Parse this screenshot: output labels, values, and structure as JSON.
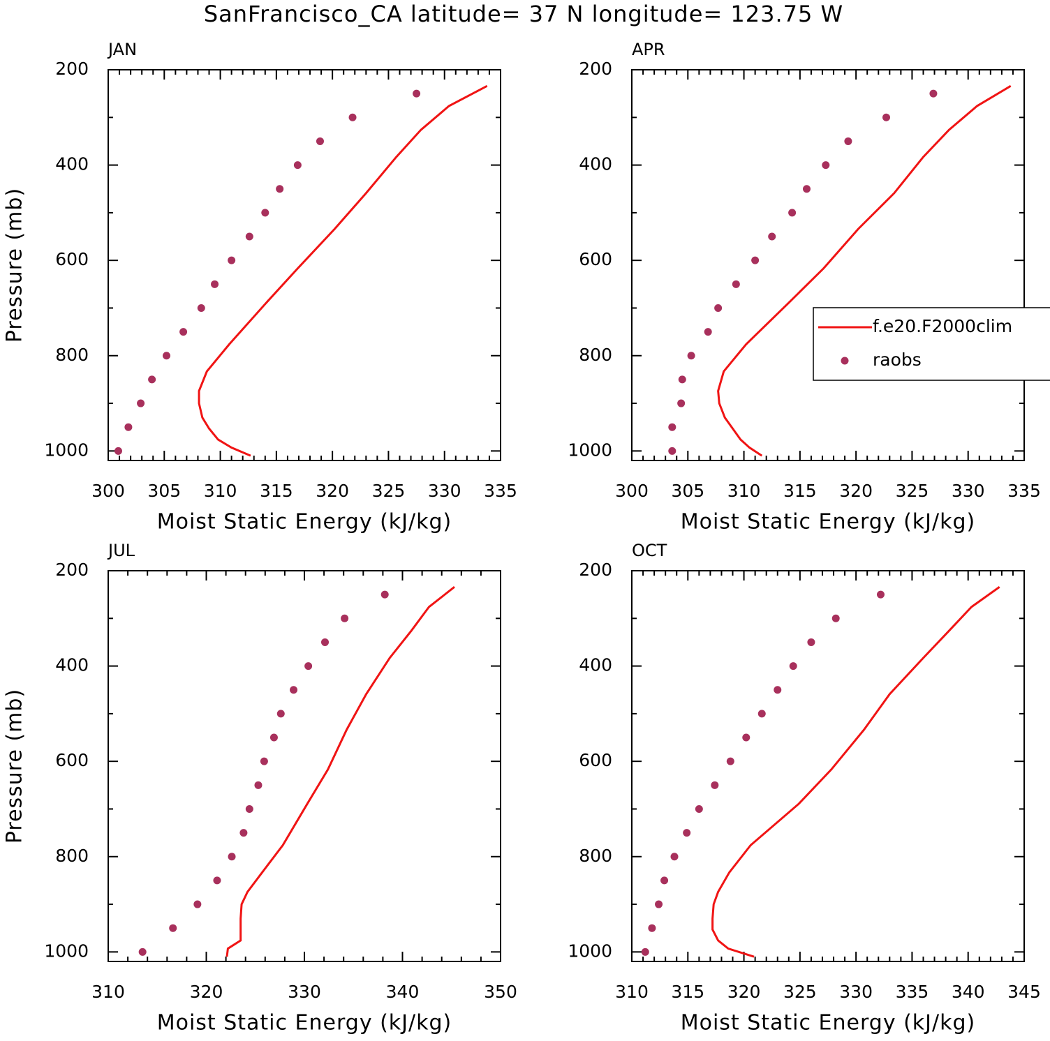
{
  "title": "SanFrancisco_CA  latitude= 37 N longitude= 123.75 W",
  "chart_data": [
    {
      "type": "line",
      "title": "JAN",
      "xlabel": "Moist Static Energy (kJ/kg)",
      "ylabel": "Pressure (mb)",
      "xlim": [
        300,
        335
      ],
      "xticks": [
        300,
        305,
        310,
        315,
        320,
        325,
        330,
        335
      ],
      "xminorticks": [
        301,
        302,
        303,
        304,
        306,
        307,
        308,
        309,
        311,
        312,
        313,
        314,
        316,
        317,
        318,
        319,
        321,
        322,
        323,
        324,
        326,
        327,
        328,
        329,
        331,
        332,
        333,
        334
      ],
      "ylim": [
        200,
        1020
      ],
      "yticks": [
        200,
        400,
        600,
        800,
        1000
      ],
      "yminorticks": [
        300,
        500,
        700,
        900
      ],
      "inverted_y": true,
      "series": [
        {
          "name": "f.e20.F2000clim",
          "type": "line",
          "color": "#f01414",
          "pressure": [
            234,
            276,
            326,
            383,
            459,
            534,
            617,
            689,
            776,
            833,
            874,
            900,
            930,
            953,
            976,
            993,
            1010
          ],
          "values": [
            333.8,
            330.4,
            327.9,
            325.7,
            323.0,
            320.2,
            316.9,
            314.1,
            310.8,
            308.8,
            308.1,
            308.1,
            308.4,
            309.0,
            309.8,
            311.0,
            312.7
          ]
        },
        {
          "name": "raobs",
          "type": "scatter",
          "color": "#a8305c",
          "pressure": [
            250,
            300,
            350,
            400,
            450,
            500,
            550,
            600,
            650,
            700,
            750,
            800,
            850,
            900,
            950,
            1000
          ],
          "values": [
            327.5,
            321.8,
            318.9,
            316.9,
            315.3,
            314.0,
            312.6,
            311.0,
            309.5,
            308.3,
            306.7,
            305.2,
            303.9,
            302.9,
            301.8,
            300.9
          ]
        }
      ]
    },
    {
      "type": "line",
      "title": "APR",
      "xlabel": "Moist Static Energy (kJ/kg)",
      "legend": "right",
      "xlim": [
        300,
        335
      ],
      "xticks": [
        300,
        305,
        310,
        315,
        320,
        325,
        330,
        335
      ],
      "xminorticks": [
        301,
        302,
        303,
        304,
        306,
        307,
        308,
        309,
        311,
        312,
        313,
        314,
        316,
        317,
        318,
        319,
        321,
        322,
        323,
        324,
        326,
        327,
        328,
        329,
        331,
        332,
        333,
        334
      ],
      "ylim": [
        200,
        1020
      ],
      "yticks": [
        200,
        400,
        600,
        800,
        1000
      ],
      "yminorticks": [
        300,
        500,
        700,
        900
      ],
      "inverted_y": true,
      "series": [
        {
          "name": "f.e20.F2000clim",
          "type": "line",
          "color": "#f01414",
          "pressure": [
            234,
            276,
            326,
            383,
            459,
            534,
            617,
            689,
            776,
            833,
            874,
            900,
            930,
            953,
            976,
            993,
            1010
          ],
          "values": [
            333.8,
            330.8,
            328.3,
            326.0,
            323.4,
            320.2,
            317.1,
            314.0,
            310.2,
            308.2,
            307.7,
            307.8,
            308.3,
            309.0,
            309.7,
            310.5,
            311.6
          ]
        },
        {
          "name": "raobs",
          "type": "scatter",
          "color": "#a8305c",
          "pressure": [
            250,
            300,
            350,
            400,
            450,
            500,
            550,
            600,
            650,
            700,
            750,
            800,
            850,
            900,
            950,
            1000
          ],
          "values": [
            326.9,
            322.7,
            319.3,
            317.3,
            315.6,
            314.3,
            312.5,
            311.0,
            309.3,
            307.7,
            306.8,
            305.3,
            304.5,
            304.4,
            303.6,
            303.6
          ]
        }
      ]
    },
    {
      "type": "line",
      "title": "JUL",
      "xlabel": "Moist Static Energy (kJ/kg)",
      "ylabel": "Pressure (mb)",
      "xlim": [
        310,
        350
      ],
      "xticks": [
        310,
        320,
        330,
        340,
        350
      ],
      "xminorticks": [
        312,
        314,
        316,
        318,
        322,
        324,
        326,
        328,
        332,
        334,
        336,
        338,
        342,
        344,
        346,
        348
      ],
      "ylim": [
        200,
        1020
      ],
      "yticks": [
        200,
        400,
        600,
        800,
        1000
      ],
      "yminorticks": [
        300,
        500,
        700,
        900
      ],
      "inverted_y": true,
      "series": [
        {
          "name": "f.e20.F2000clim",
          "type": "line",
          "color": "#f01414",
          "pressure": [
            234,
            276,
            326,
            383,
            459,
            534,
            617,
            689,
            776,
            833,
            874,
            900,
            930,
            953,
            976,
            993,
            1010
          ],
          "values": [
            345.3,
            342.7,
            340.9,
            338.7,
            336.3,
            334.3,
            332.4,
            330.3,
            327.8,
            325.7,
            324.2,
            323.6,
            323.5,
            323.5,
            323.5,
            322.2,
            322.1
          ]
        },
        {
          "name": "raobs",
          "type": "scatter",
          "color": "#a8305c",
          "pressure": [
            250,
            300,
            350,
            400,
            450,
            500,
            550,
            600,
            650,
            700,
            750,
            800,
            850,
            900,
            950,
            1000
          ],
          "values": [
            338.2,
            334.1,
            332.1,
            330.4,
            328.9,
            327.6,
            326.9,
            325.9,
            325.3,
            324.4,
            323.8,
            322.6,
            321.1,
            319.1,
            316.6,
            313.5
          ]
        }
      ]
    },
    {
      "type": "line",
      "title": "OCT",
      "xlabel": "Moist Static Energy (kJ/kg)",
      "xlim": [
        310,
        345
      ],
      "xticks": [
        310,
        315,
        320,
        325,
        330,
        335,
        340,
        345
      ],
      "xminorticks": [
        311,
        312,
        313,
        314,
        316,
        317,
        318,
        319,
        321,
        322,
        323,
        324,
        326,
        327,
        328,
        329,
        331,
        332,
        333,
        334,
        336,
        337,
        338,
        339,
        341,
        342,
        343,
        344
      ],
      "ylim": [
        200,
        1020
      ],
      "yticks": [
        200,
        400,
        600,
        800,
        1000
      ],
      "yminorticks": [
        300,
        500,
        700,
        900
      ],
      "inverted_y": true,
      "series": [
        {
          "name": "f.e20.F2000clim",
          "type": "line",
          "color": "#f01414",
          "pressure": [
            234,
            276,
            326,
            383,
            459,
            534,
            617,
            689,
            776,
            833,
            874,
            900,
            930,
            953,
            976,
            993,
            1010
          ],
          "values": [
            342.8,
            340.3,
            338.3,
            336.0,
            333.0,
            330.7,
            327.8,
            324.9,
            320.6,
            318.7,
            317.7,
            317.3,
            317.2,
            317.2,
            317.7,
            318.6,
            320.9
          ]
        },
        {
          "name": "raobs",
          "type": "scatter",
          "color": "#a8305c",
          "pressure": [
            250,
            300,
            350,
            400,
            450,
            500,
            550,
            600,
            650,
            700,
            750,
            800,
            850,
            900,
            950,
            1000
          ],
          "values": [
            332.2,
            328.2,
            326.0,
            324.4,
            323.0,
            321.6,
            320.2,
            318.8,
            317.4,
            316.0,
            314.9,
            313.8,
            312.9,
            312.4,
            311.8,
            311.2
          ]
        }
      ]
    }
  ]
}
